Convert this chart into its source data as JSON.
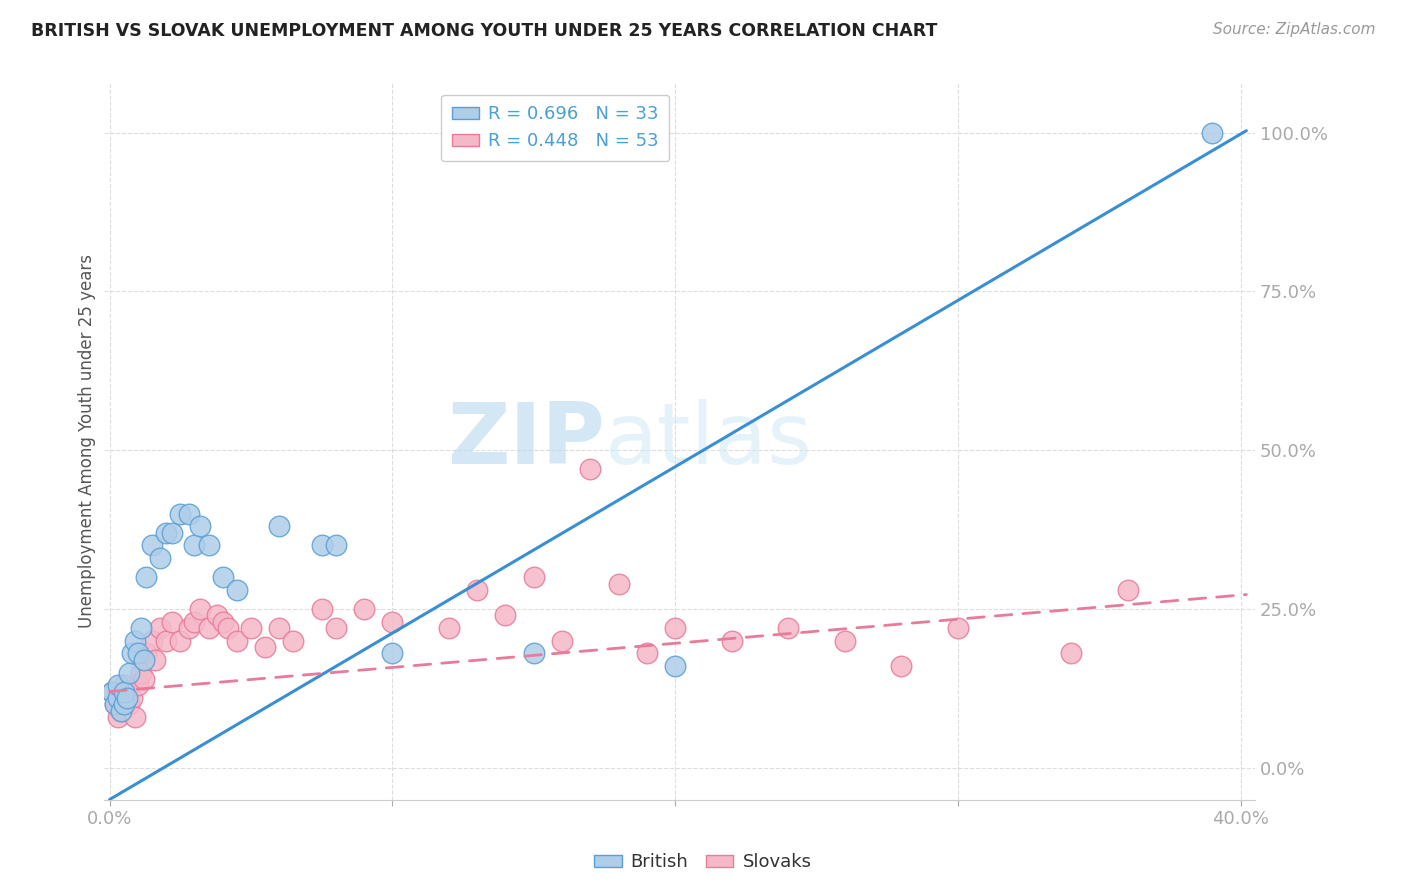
{
  "title": "BRITISH VS SLOVAK UNEMPLOYMENT AMONG YOUTH UNDER 25 YEARS CORRELATION CHART",
  "source": "Source: ZipAtlas.com",
  "xlabel_ticks": [
    "0.0%",
    "",
    "",
    "",
    "40.0%"
  ],
  "xlabel_tick_vals": [
    0.0,
    0.1,
    0.2,
    0.3,
    0.4
  ],
  "ylabel_ticks": [
    "100.0%",
    "75.0%",
    "50.0%",
    "25.0%",
    "0.0%"
  ],
  "ylabel_tick_vals": [
    1.0,
    0.75,
    0.5,
    0.25,
    0.0
  ],
  "ylabel_label": "Unemployment Among Youth under 25 years",
  "xlim": [
    -0.002,
    0.405
  ],
  "ylim": [
    -0.05,
    1.08
  ],
  "british_color": "#aecde8",
  "slovak_color": "#f5b8c8",
  "british_edge": "#5a9fd4",
  "slovak_edge": "#e87a9a",
  "regression_british_color": "#3a8fd4",
  "regression_slovak_color": "#e87a9a",
  "R_british": 0.696,
  "N_british": 33,
  "R_slovak": 0.448,
  "N_slovak": 53,
  "british_x": [
    0.001,
    0.002,
    0.003,
    0.003,
    0.004,
    0.005,
    0.005,
    0.006,
    0.007,
    0.008,
    0.009,
    0.01,
    0.011,
    0.012,
    0.013,
    0.015,
    0.018,
    0.02,
    0.022,
    0.025,
    0.028,
    0.03,
    0.032,
    0.035,
    0.04,
    0.045,
    0.06,
    0.075,
    0.08,
    0.1,
    0.15,
    0.2,
    0.39
  ],
  "british_y": [
    0.12,
    0.1,
    0.11,
    0.13,
    0.09,
    0.1,
    0.12,
    0.11,
    0.15,
    0.18,
    0.2,
    0.18,
    0.22,
    0.17,
    0.3,
    0.35,
    0.33,
    0.37,
    0.37,
    0.4,
    0.4,
    0.35,
    0.38,
    0.35,
    0.3,
    0.28,
    0.38,
    0.35,
    0.35,
    0.18,
    0.18,
    0.16,
    1.0
  ],
  "slovak_x": [
    0.001,
    0.002,
    0.003,
    0.003,
    0.004,
    0.005,
    0.005,
    0.006,
    0.007,
    0.008,
    0.009,
    0.01,
    0.011,
    0.012,
    0.013,
    0.015,
    0.016,
    0.018,
    0.02,
    0.022,
    0.025,
    0.028,
    0.03,
    0.032,
    0.035,
    0.038,
    0.04,
    0.042,
    0.045,
    0.05,
    0.055,
    0.06,
    0.065,
    0.075,
    0.08,
    0.09,
    0.1,
    0.12,
    0.13,
    0.14,
    0.15,
    0.16,
    0.17,
    0.18,
    0.19,
    0.2,
    0.22,
    0.24,
    0.26,
    0.28,
    0.3,
    0.34,
    0.36
  ],
  "slovak_y": [
    0.12,
    0.1,
    0.11,
    0.08,
    0.09,
    0.13,
    0.1,
    0.12,
    0.1,
    0.11,
    0.08,
    0.13,
    0.15,
    0.14,
    0.18,
    0.2,
    0.17,
    0.22,
    0.2,
    0.23,
    0.2,
    0.22,
    0.23,
    0.25,
    0.22,
    0.24,
    0.23,
    0.22,
    0.2,
    0.22,
    0.19,
    0.22,
    0.2,
    0.25,
    0.22,
    0.25,
    0.23,
    0.22,
    0.28,
    0.24,
    0.3,
    0.2,
    0.47,
    0.29,
    0.18,
    0.22,
    0.2,
    0.22,
    0.2,
    0.16,
    0.22,
    0.18,
    0.28
  ],
  "watermark_zip": "ZIP",
  "watermark_atlas": "atlas",
  "background_color": "#ffffff",
  "grid_color": "#dddddd",
  "regression_british_slope": 2.62,
  "regression_british_intercept": -0.05,
  "regression_slovak_slope": 0.38,
  "regression_slovak_intercept": 0.12
}
